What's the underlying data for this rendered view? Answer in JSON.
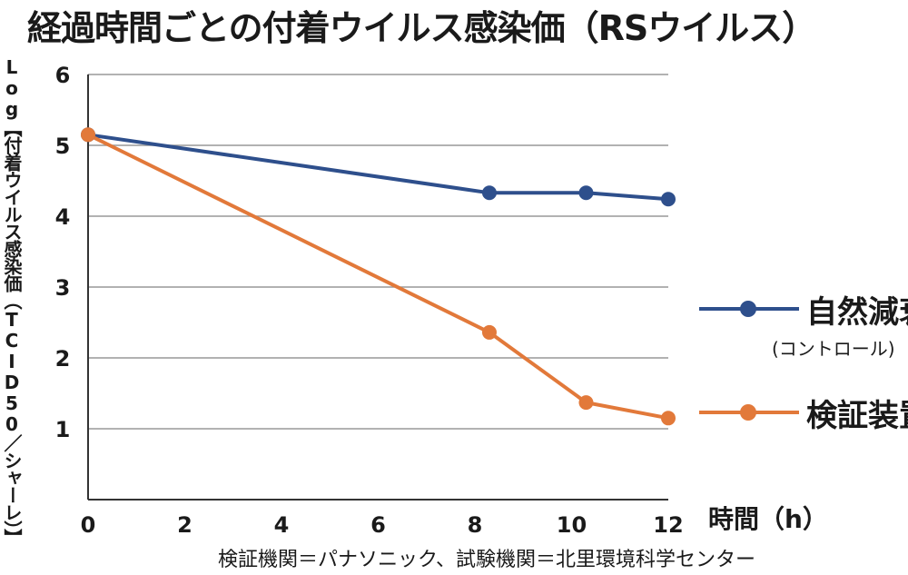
{
  "title": "経過時間ごとの付着ウイルス感染価（RSウイルス）",
  "footer": "検証機関＝パナソニック、試験機関＝北里環境科学センター",
  "colors": {
    "blue": "#2e4f8c",
    "orange": "#e2793a",
    "grid": "#999999",
    "axis": "#333333"
  },
  "chart_data": {
    "type": "line",
    "title": "経過時間ごとの付着ウイルス感染価（RSウイルス）",
    "xlabel": "時間（h）",
    "ylabel": "Log【付着ウイルス感染価（TCID50／シャーレ）】",
    "xlim": [
      0,
      12
    ],
    "ylim": [
      0,
      6
    ],
    "xticks": [
      0,
      2,
      4,
      6,
      8,
      10,
      12
    ],
    "yticks": [
      1,
      2,
      3,
      4,
      5,
      6
    ],
    "grid": true,
    "legend_position": "right",
    "series": [
      {
        "name": "自然減衰",
        "subname": "(コントロール)",
        "color": "#2e4f8c",
        "x": [
          0,
          8.3,
          10.3,
          12
        ],
        "y": [
          5.15,
          4.33,
          4.33,
          4.24
        ]
      },
      {
        "name": "検証装置",
        "color": "#e2793a",
        "x": [
          0,
          8.3,
          10.3,
          12
        ],
        "y": [
          5.15,
          2.36,
          1.37,
          1.15
        ]
      }
    ]
  }
}
